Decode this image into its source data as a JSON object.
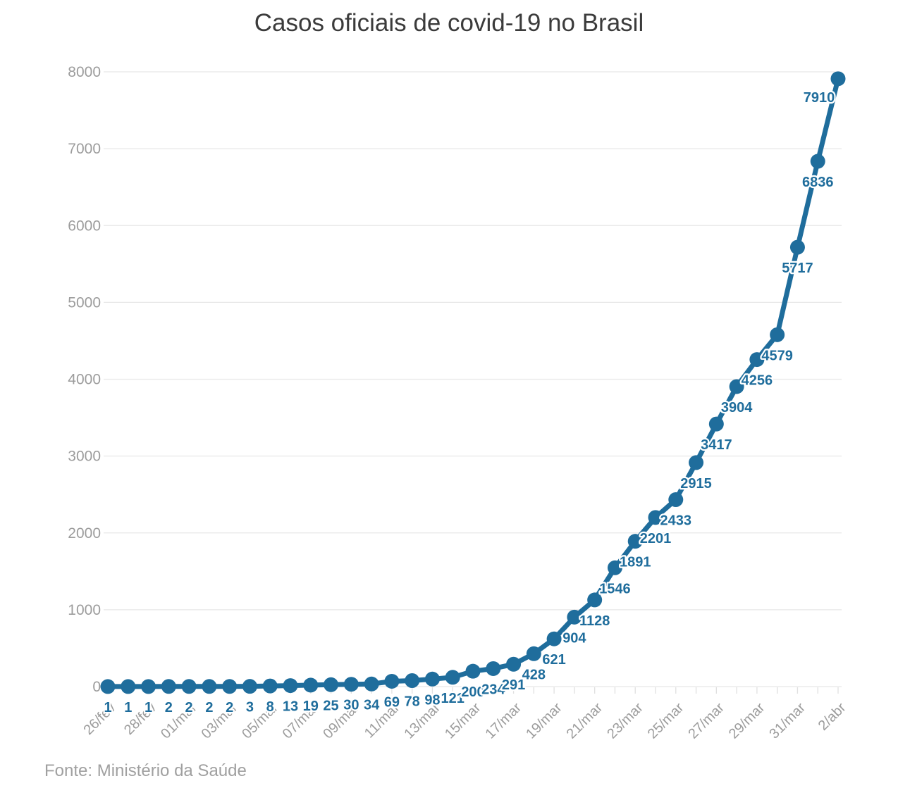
{
  "colors": {
    "line": "#1f6d9c",
    "point": "#1f6d9c",
    "point_label": "#1f6d9c",
    "grid": "#e7e7e7",
    "tick": "#e0e0e0",
    "axis_text": "#9c9c9c",
    "title_text": "#3b3b3b",
    "footer_text": "#a0a0a0",
    "background": "#ffffff"
  },
  "chart_data": {
    "type": "line",
    "title": "Casos oficiais de covid-19 no Brasil",
    "source": "Fonte: Ministério da Saúde",
    "values": [
      1,
      1,
      1,
      2,
      2,
      2,
      2,
      3,
      8,
      13,
      19,
      25,
      30,
      34,
      69,
      78,
      98,
      121,
      200,
      234,
      291,
      428,
      621,
      904,
      1128,
      1546,
      1891,
      2201,
      2433,
      2915,
      3417,
      3904,
      4256,
      4579,
      5717,
      6836,
      7910
    ],
    "point_labels_shown": true,
    "x_axis_labels": [
      "26/fev",
      "28/fev",
      "01/mar",
      "03/mar",
      "05/mar",
      "07/mar",
      "09/mar",
      "11/mar",
      "13/mar",
      "15/mar",
      "17/mar",
      "19/mar",
      "21/mar",
      "23/mar",
      "25/mar",
      "27/mar",
      "29/mar",
      "31/mar",
      "2/abr"
    ],
    "x_axis_label_every": 2,
    "x_tick_count": 37,
    "y_ticks": [
      0,
      1000,
      2000,
      3000,
      4000,
      5000,
      6000,
      7000,
      8000
    ],
    "ylim": [
      0,
      8000
    ],
    "grid": "horizontal",
    "legend": "none"
  }
}
